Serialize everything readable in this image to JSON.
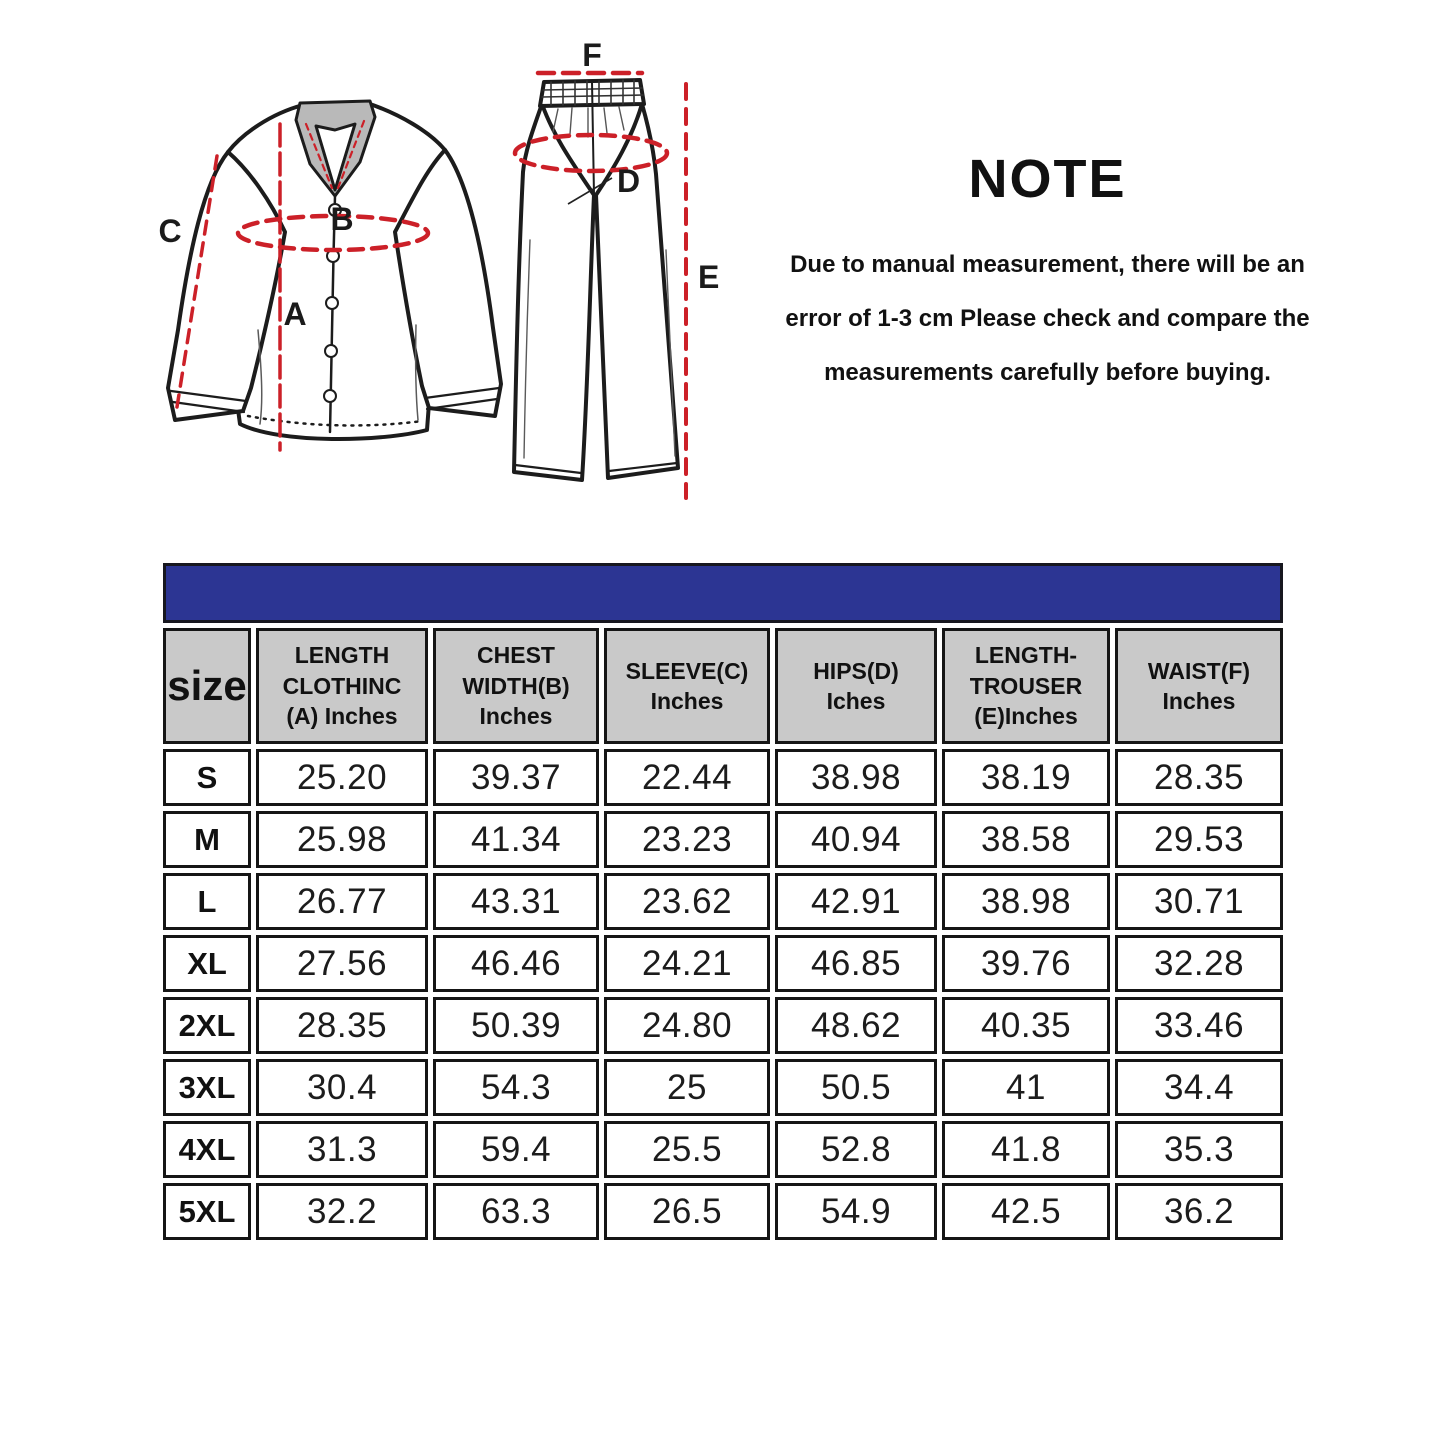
{
  "note": {
    "title": "NOTE",
    "lines": [
      "Due to manual measurement, there will be an",
      "error of 1-3 cm Please check and compare the",
      "measurements carefully before buying."
    ]
  },
  "diagram": {
    "labels": {
      "A": "A",
      "B": "B",
      "C": "C",
      "D": "D",
      "E": "E",
      "F": "F"
    }
  },
  "chart_data": {
    "type": "table",
    "columns": [
      "size",
      "LENGTH\nCLOTHINC\n(A) Inches",
      "CHEST\nWIDTH(B)\nInches",
      "SLEEVE(C)\nInches",
      "HIPS(D)\nIches",
      "LENGTH-\nTROUSER\n(E)Inches",
      "WAIST(F)\nInches"
    ],
    "rows": [
      [
        "S",
        "25.20",
        "39.37",
        "22.44",
        "38.98",
        "38.19",
        "28.35"
      ],
      [
        "M",
        "25.98",
        "41.34",
        "23.23",
        "40.94",
        "38.58",
        "29.53"
      ],
      [
        "L",
        "26.77",
        "43.31",
        "23.62",
        "42.91",
        "38.98",
        "30.71"
      ],
      [
        "XL",
        "27.56",
        "46.46",
        "24.21",
        "46.85",
        "39.76",
        "32.28"
      ],
      [
        "2XL",
        "28.35",
        "50.39",
        "24.80",
        "48.62",
        "40.35",
        "33.46"
      ],
      [
        "3XL",
        "30.4",
        "54.3",
        "25",
        "50.5",
        "41",
        "34.4"
      ],
      [
        "4XL",
        "31.3",
        "59.4",
        "25.5",
        "52.8",
        "41.8",
        "35.3"
      ],
      [
        "5XL",
        "32.2",
        "63.3",
        "26.5",
        "54.9",
        "42.5",
        "36.2"
      ]
    ]
  },
  "colors": {
    "title_bar": "#2c3593",
    "header_cell_bg": "#c9c9c9",
    "measure_line": "#cc2028",
    "collar_fill": "#b9b9b9"
  }
}
